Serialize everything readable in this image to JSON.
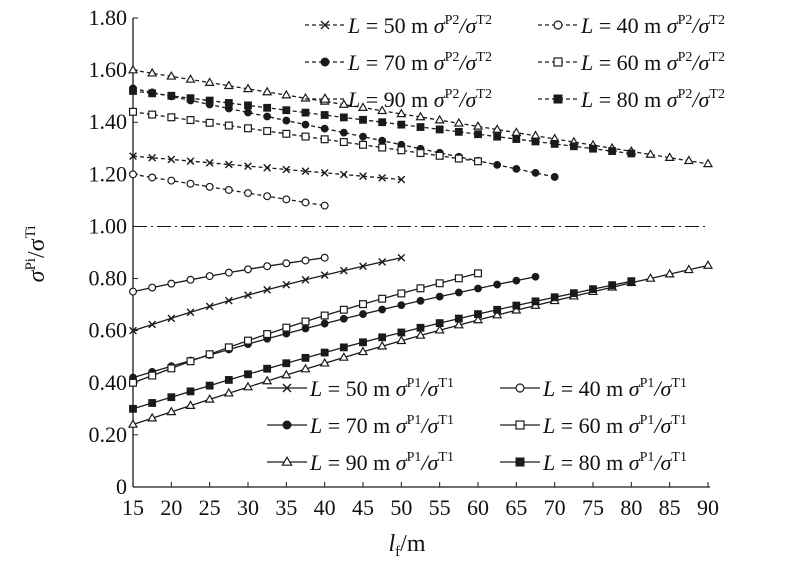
{
  "chart_data": {
    "type": "line",
    "x_label_main": "l",
    "x_label_sub": "f",
    "x_label_unit": "/m",
    "y_label_main": "σ",
    "y_label_sup1": "Pi",
    "y_label_slash": "/σ",
    "y_label_sup2": "Ti",
    "xlim": [
      15,
      90
    ],
    "ylim": [
      0,
      1.8
    ],
    "x_ticks": [
      "15",
      "20",
      "25",
      "30",
      "35",
      "40",
      "45",
      "50",
      "55",
      "60",
      "65",
      "70",
      "75",
      "80",
      "85",
      "90"
    ],
    "y_ticks": [
      "0",
      "0.20",
      "0.40",
      "0.60",
      "0.80",
      "1.00",
      "1.20",
      "1.40",
      "1.60",
      "1.80"
    ],
    "reference_line": 1.0,
    "series": [
      {
        "name": "L = 50 m σP2/σT2",
        "marker": "x",
        "dashed": true,
        "x_start": 15,
        "x_end": 50,
        "y_start": 1.27,
        "y_end": 1.18
      },
      {
        "name": "L = 40 m σP2/σT2",
        "marker": "circle-open",
        "dashed": true,
        "x_start": 15,
        "x_end": 40,
        "y_start": 1.2,
        "y_end": 1.08
      },
      {
        "name": "L = 70 m σP2/σT2",
        "marker": "circle-filled",
        "dashed": true,
        "x_start": 15,
        "x_end": 70,
        "y_start": 1.53,
        "y_end": 1.19
      },
      {
        "name": "L = 60 m σP2/σT2",
        "marker": "square-open",
        "dashed": true,
        "x_start": 15,
        "x_end": 60,
        "y_start": 1.44,
        "y_end": 1.25
      },
      {
        "name": "L = 90 m σP2/σT2",
        "marker": "triangle-open",
        "dashed": true,
        "x_start": 15,
        "x_end": 90,
        "y_start": 1.6,
        "y_end": 1.24
      },
      {
        "name": "L = 80 m σP2/σT2",
        "marker": "square-filled",
        "dashed": true,
        "x_start": 15,
        "x_end": 80,
        "y_start": 1.52,
        "y_end": 1.28
      },
      {
        "name": "L = 50 m σP1/σT1",
        "marker": "x",
        "dashed": false,
        "x_start": 15,
        "x_end": 50,
        "y_start": 0.6,
        "y_end": 0.88
      },
      {
        "name": "L = 40 m σP1/σT1",
        "marker": "circle-open",
        "dashed": false,
        "x_start": 15,
        "x_end": 40,
        "y_start": 0.75,
        "y_end": 0.88
      },
      {
        "name": "L = 70 m σP1/σT1",
        "marker": "circle-filled",
        "dashed": false,
        "x_start": 15,
        "x_end": 68,
        "y_start": 0.42,
        "y_end": 0.81
      },
      {
        "name": "L = 60 m σP1/σT1",
        "marker": "square-open",
        "dashed": false,
        "x_start": 15,
        "x_end": 60,
        "y_start": 0.4,
        "y_end": 0.82
      },
      {
        "name": "L = 90 m σP1/σT1",
        "marker": "triangle-open",
        "dashed": false,
        "x_start": 15,
        "x_end": 90,
        "y_start": 0.24,
        "y_end": 0.85
      },
      {
        "name": "L = 80 m σP1/σT1",
        "marker": "square-filled",
        "dashed": false,
        "x_start": 15,
        "x_end": 80,
        "y_start": 0.3,
        "y_end": 0.79
      }
    ],
    "legend_top": {
      "placement": "top-right",
      "entries": [
        {
          "L": "50",
          "marker": "x",
          "ratio": "P2/T2"
        },
        {
          "L": "40",
          "marker": "circle-open",
          "ratio": "P2/T2"
        },
        {
          "L": "70",
          "marker": "circle-filled",
          "ratio": "P2/T2"
        },
        {
          "L": "60",
          "marker": "square-open",
          "ratio": "P2/T2"
        },
        {
          "L": "90",
          "marker": "triangle-open",
          "ratio": "P2/T2"
        },
        {
          "L": "80",
          "marker": "square-filled",
          "ratio": "P2/T2"
        }
      ]
    },
    "legend_bottom": {
      "placement": "bottom-right",
      "entries": [
        {
          "L": "50",
          "marker": "x",
          "ratio": "P1/T1"
        },
        {
          "L": "40",
          "marker": "circle-open",
          "ratio": "P1/T1"
        },
        {
          "L": "70",
          "marker": "circle-filled",
          "ratio": "P1/T1"
        },
        {
          "L": "60",
          "marker": "square-open",
          "ratio": "P1/T1"
        },
        {
          "L": "90",
          "marker": "triangle-open",
          "ratio": "P1/T1"
        },
        {
          "L": "80",
          "marker": "square-filled",
          "ratio": "P1/T1"
        }
      ]
    },
    "legend_L_prefix": "L",
    "legend_equals": " = ",
    "legend_unit": " m ",
    "legend_sigma": "σ",
    "legend_slash": "/σ",
    "grid": false,
    "line_color": "#1a1a1a"
  }
}
